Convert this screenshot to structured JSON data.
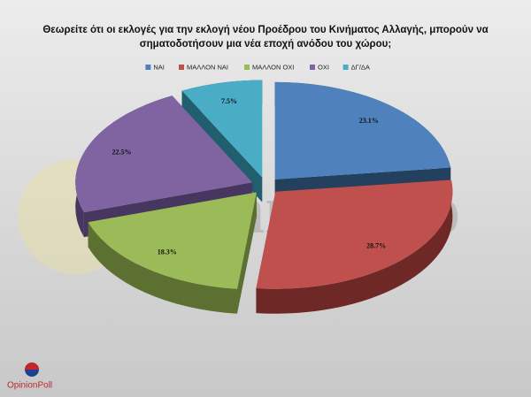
{
  "chart_data": {
    "type": "pie3d",
    "title": [
      "Θεωρείτε ότι οι εκλογές για την εκλογή νέου Προέδρου του Κινήματος Αλλαγής, μπορούν να",
      "σηματοδοτήσουν μια νέα εποχή ανόδου του χώρου;"
    ],
    "categories": [
      "ΝΑΙ",
      "ΜΑΛΛΟΝ ΝΑΙ",
      "ΜΑΛΛΟΝ ΟΧΙ",
      "ΟΧΙ",
      "ΔΓ/ΔΑ"
    ],
    "values": [
      23.1,
      28.7,
      18.3,
      22.5,
      7.5
    ],
    "value_labels": [
      "23.1%",
      "28.7%",
      "18.3%",
      "22.5%",
      "7.5%"
    ],
    "colors": [
      "#4f81bd",
      "#c0504d",
      "#9bbb59",
      "#8064a2",
      "#4bacc6"
    ],
    "side_colors": [
      "#24405f",
      "#6e2826",
      "#5b7031",
      "#463660",
      "#215e6e"
    ],
    "legend": "top"
  },
  "watermark": "tomanifesto",
  "logo": "OpinionPoll"
}
